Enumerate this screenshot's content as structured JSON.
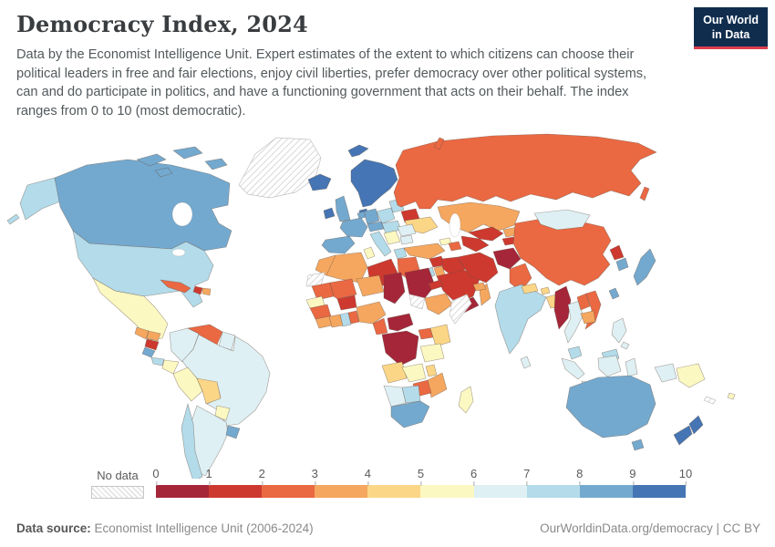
{
  "header": {
    "title": "Democracy Index, 2024",
    "subtitle": "Data by the Economist Intelligence Unit. Expert estimates of the extent to which citizens can choose their political leaders in free and fair elections, enjoy civil liberties, prefer democracy over other political systems, can and do participate in politics, and have a functioning government that acts on their behalf. The index ranges from 0 to 10 (most democratic)."
  },
  "logo": {
    "line1": "Our World",
    "line2": "in Data",
    "bg": "#102d4e",
    "accent": "#dc3e4e"
  },
  "legend": {
    "no_data_label": "No data",
    "tick_labels": [
      "0",
      "1",
      "2",
      "3",
      "4",
      "5",
      "6",
      "7",
      "8",
      "9",
      "10"
    ],
    "bins": [
      {
        "range": "0-1",
        "color": "#a52639"
      },
      {
        "range": "1-2",
        "color": "#cd392f"
      },
      {
        "range": "2-3",
        "color": "#ea6842"
      },
      {
        "range": "3-4",
        "color": "#f5a75f"
      },
      {
        "range": "4-5",
        "color": "#fbd687"
      },
      {
        "range": "5-6",
        "color": "#fcf8c2"
      },
      {
        "range": "6-7",
        "color": "#def0f4"
      },
      {
        "range": "7-8",
        "color": "#b3dbea"
      },
      {
        "range": "8-9",
        "color": "#74a9cf"
      },
      {
        "range": "9-10",
        "color": "#4575b4"
      }
    ]
  },
  "footer": {
    "source_label": "Data source:",
    "source_value": "Economist Intelligence Unit (2006-2024)",
    "right_text": "OurWorldinData.org/democracy | CC BY"
  },
  "map": {
    "ocean_color": "#ffffff",
    "border_color": "#8a7f73",
    "region_colors": {
      "greenland": "url(#hatch)",
      "canada": "#74a9cf",
      "canada_arctic": "#74a9cf",
      "alaska": "#b3dbea",
      "usa": "#b3dbea",
      "mexico": "#fcf8c2",
      "guatemala": "#f5a75f",
      "honduras": "#f5a75f",
      "nicaragua": "#cd392f",
      "costa_rica": "#74a9cf",
      "panama": "#b3dbea",
      "cuba": "#ea6842",
      "haiti": "#cd392f",
      "dominican_republic": "#f5a75f",
      "colombia": "#def0f4",
      "venezuela": "#ea6842",
      "guyana": "#def0f4",
      "ecuador": "#fcf8c2",
      "peru": "#fcf8c2",
      "bolivia": "#fbd687",
      "brazil": "#def0f4",
      "paraguay": "#fcf8c2",
      "uruguay": "#74a9cf",
      "argentina": "#def0f4",
      "chile": "#b3dbea",
      "iceland": "#4575b4",
      "svalbard": "#4575b4",
      "ireland": "#4575b4",
      "uk": "#74a9cf",
      "nordics": "#4575b4",
      "denmark": "#4575b4",
      "baltics": "#b3dbea",
      "belarus": "#cd392f",
      "poland": "#b3dbea",
      "germany": "#74a9cf",
      "benelux": "#74a9cf",
      "france": "#74a9cf",
      "iberia": "#74a9cf",
      "alpine": "#74a9cf",
      "italy": "#b3dbea",
      "central_europe": "#b3dbea",
      "romania": "#def0f4",
      "balkans": "#fcf8c2",
      "bulgaria": "#def0f4",
      "greece": "#b3dbea",
      "ukraine": "#fbd687",
      "russia": "#ea6842",
      "novaya_zemlya": "#ea6842",
      "sakhalin": "#ea6842",
      "turkey": "#f5a75f",
      "georgia": "#fcf8c2",
      "azerbaijan_armenia": "#ea6842",
      "kazakhstan": "#f5a75f",
      "uzbekistan": "#cd392f",
      "turkmenistan": "#cd392f",
      "kyrgyzstan": "#f5a75f",
      "tajikistan": "#cd392f",
      "syria": "#cd392f",
      "israel": "#b3dbea",
      "jordan": "#f5a75f",
      "iraq": "#cd392f",
      "saudi_arabia": "#cd392f",
      "yemen": "#a52639",
      "oman": "#f5a75f",
      "uae_qatar": "#f5a75f",
      "iran": "#cd392f",
      "afghanistan": "#a52639",
      "pakistan": "#ea6842",
      "morocco": "#f5a75f",
      "western_sahara": "url(#hatch)",
      "algeria": "#f5a75f",
      "tunisia": "#fcf8c2",
      "libya": "#cd392f",
      "egypt": "#ea6842",
      "mauritania": "#ea6842",
      "mali": "#ea6842",
      "niger": "#f5a75f",
      "chad": "#a52639",
      "sudan": "#a52639",
      "eritrea": "#cd392f",
      "south_sudan": "url(#hatch)",
      "ethiopia": "#f5a75f",
      "somalia": "url(#hatch)",
      "senegal": "#fcf8c2",
      "guinea": "#ea6842",
      "sierra_leone_liberia": "#f5a75f",
      "ivory_coast": "#f5a75f",
      "ghana": "#b3dbea",
      "togo_benin": "#ea6842",
      "burkina_faso": "#cd392f",
      "nigeria": "#f5a75f",
      "cameroon": "#ea6842",
      "central_african_republic": "#a52639",
      "drc": "#a52639",
      "uganda": "#ea6842",
      "kenya": "#fbd687",
      "tanzania": "#fcf8c2",
      "angola": "#fbd687",
      "zambia": "#fcf8c2",
      "malawi": "#fbd687",
      "mozambique": "#f5a75f",
      "zimbabwe": "#ea6842",
      "botswana": "#b3dbea",
      "namibia": "#def0f4",
      "south_africa": "#74a9cf",
      "madagascar": "#fcf8c2",
      "china": "#ea6842",
      "mongolia": "#def0f4",
      "north_korea": "#cd392f",
      "south_korea": "#74a9cf",
      "japan": "#74a9cf",
      "taiwan": "#74a9cf",
      "india": "#b3dbea",
      "nepal": "#fbd687",
      "bhutan": "#fbd687",
      "bangladesh": "#fbd687",
      "sri_lanka": "#def0f4",
      "myanmar": "#a52639",
      "thailand": "#def0f4",
      "laos": "#ea6842",
      "vietnam": "#ea6842",
      "cambodia": "#f5a75f",
      "malaysia": "#b3dbea",
      "indonesia": "#def0f4",
      "philippines": "#def0f4",
      "papua_new_guinea": "#fcf8c2",
      "new_caledonia": "url(#hatch)",
      "fiji": "#fcf8c2",
      "australia": "#74a9cf",
      "tasmania": "#74a9cf",
      "new_zealand": "#4575b4"
    }
  }
}
